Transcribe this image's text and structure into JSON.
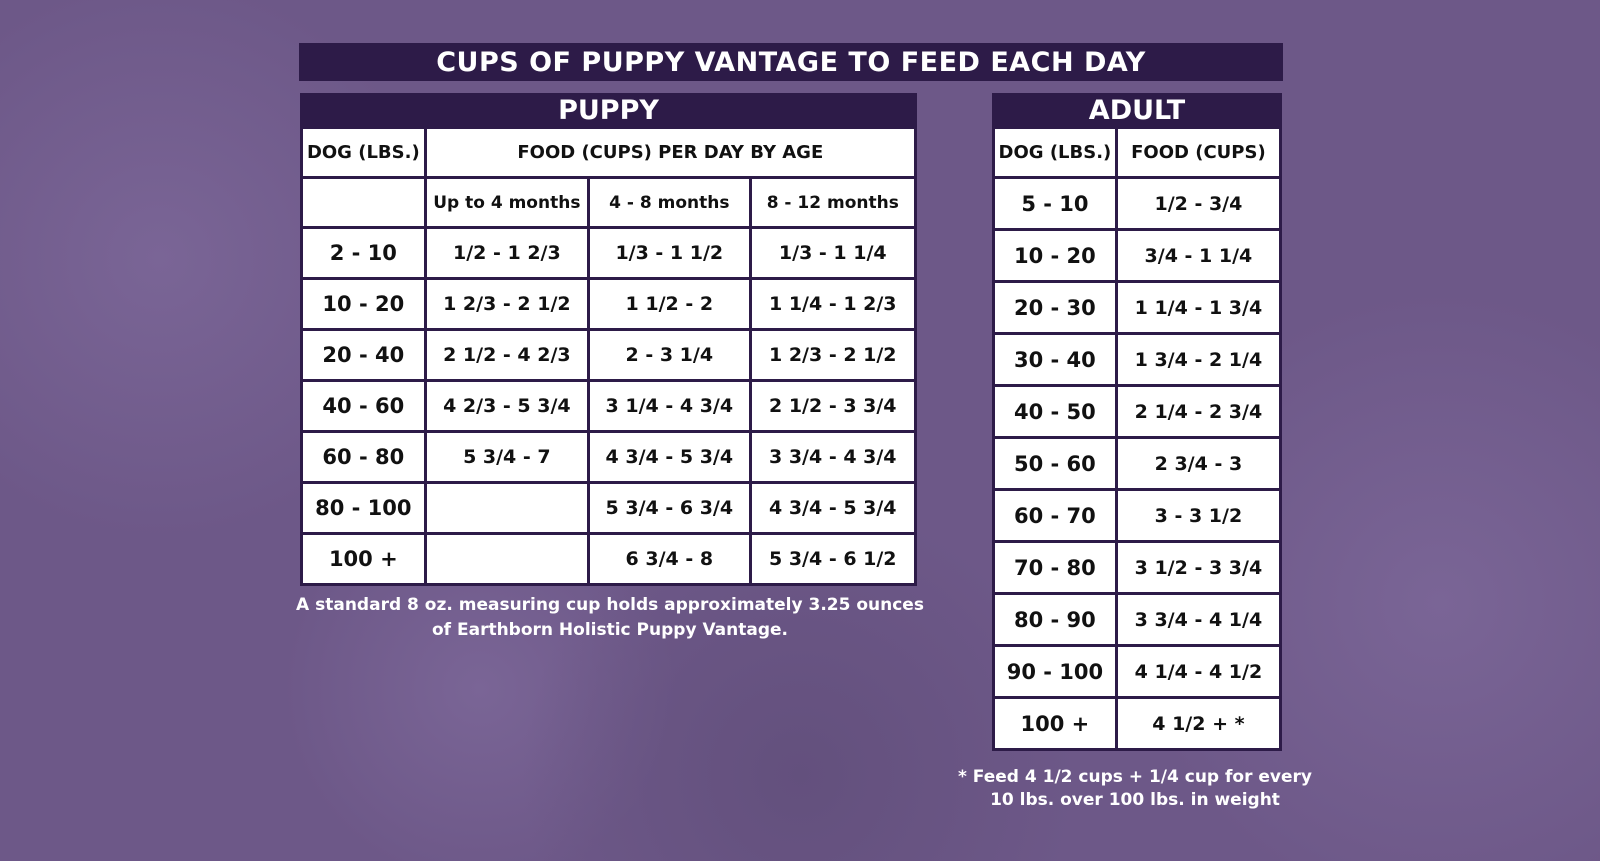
{
  "title": "CUPS OF PUPPY VANTAGE TO FEED EACH DAY",
  "colors": {
    "background": "#6d5888",
    "header": "#2d1b48",
    "cell": "#ffffff"
  },
  "puppy": {
    "title": "PUPPY",
    "col_weight": "DOG (LBS.)",
    "col_food": "FOOD (CUPS) PER DAY BY AGE",
    "ages": [
      "Up to 4 months",
      "4 - 8 months",
      "8 - 12 months"
    ],
    "rows": [
      {
        "lbs": "2 - 10",
        "v": [
          "1/2 - 1 2/3",
          "1/3 - 1 1/2",
          "1/3 - 1 1/4"
        ]
      },
      {
        "lbs": "10 - 20",
        "v": [
          "1 2/3 - 2 1/2",
          "1 1/2 - 2",
          "1 1/4 - 1 2/3"
        ]
      },
      {
        "lbs": "20 - 40",
        "v": [
          "2 1/2 - 4 2/3",
          "2 - 3 1/4",
          "1 2/3 - 2 1/2"
        ]
      },
      {
        "lbs": "40 - 60",
        "v": [
          "4 2/3 - 5 3/4",
          "3 1/4 - 4 3/4",
          "2 1/2 - 3 3/4"
        ]
      },
      {
        "lbs": "60 - 80",
        "v": [
          "5 3/4 - 7",
          "4 3/4 - 5 3/4",
          "3 3/4 - 4 3/4"
        ]
      },
      {
        "lbs": "80 - 100",
        "v": [
          "",
          "5 3/4 - 6 3/4",
          "4 3/4 - 5 3/4"
        ]
      },
      {
        "lbs": "100 +",
        "v": [
          "",
          "6 3/4 - 8",
          "5 3/4 - 6 1/2"
        ]
      }
    ],
    "note": "A standard 8 oz. measuring cup holds approximately 3.25 ounces of Earthborn Holistic Puppy Vantage."
  },
  "adult": {
    "title": "ADULT",
    "col_weight": "DOG (LBS.)",
    "col_food": "FOOD (CUPS)",
    "rows": [
      {
        "lbs": "5 - 10",
        "v": "1/2 - 3/4"
      },
      {
        "lbs": "10 - 20",
        "v": "3/4 - 1 1/4"
      },
      {
        "lbs": "20 - 30",
        "v": "1 1/4 - 1 3/4"
      },
      {
        "lbs": "30 - 40",
        "v": "1 3/4 - 2 1/4"
      },
      {
        "lbs": "40 - 50",
        "v": "2 1/4 - 2 3/4"
      },
      {
        "lbs": "50 - 60",
        "v": "2 3/4 - 3"
      },
      {
        "lbs": "60 - 70",
        "v": "3 - 3 1/2"
      },
      {
        "lbs": "70 - 80",
        "v": "3 1/2 - 3 3/4"
      },
      {
        "lbs": "80 - 90",
        "v": "3 3/4 - 4 1/4"
      },
      {
        "lbs": "90 - 100",
        "v": "4 1/4 - 4 1/2"
      },
      {
        "lbs": "100 +",
        "v": "4 1/2 + *"
      }
    ],
    "note": "* Feed 4 1/2 cups + 1/4 cup for every 10 lbs. over 100 lbs. in weight"
  }
}
